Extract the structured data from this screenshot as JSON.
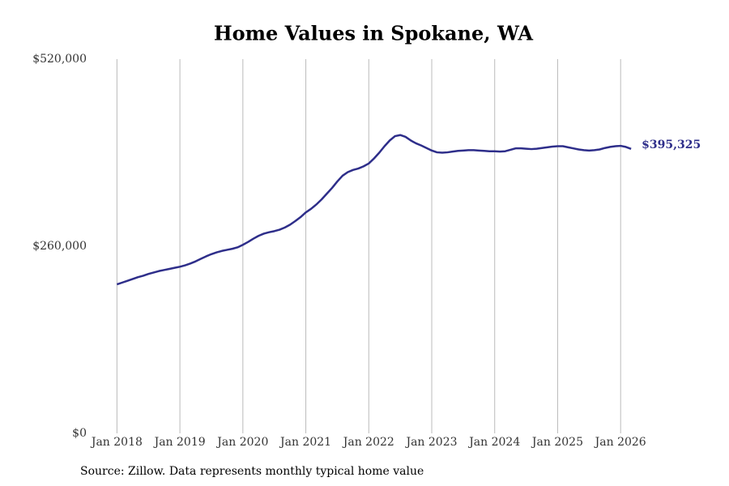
{
  "chart_data": {
    "type": "line",
    "title": "Home Values in Spokane, WA",
    "source": "Source: Zillow. Data represents monthly typical home value",
    "x": [
      "2018-01",
      "2018-02",
      "2018-03",
      "2018-04",
      "2018-05",
      "2018-06",
      "2018-07",
      "2018-08",
      "2018-09",
      "2018-10",
      "2018-11",
      "2018-12",
      "2019-01",
      "2019-02",
      "2019-03",
      "2019-04",
      "2019-05",
      "2019-06",
      "2019-07",
      "2019-08",
      "2019-09",
      "2019-10",
      "2019-11",
      "2019-12",
      "2020-01",
      "2020-02",
      "2020-03",
      "2020-04",
      "2020-05",
      "2020-06",
      "2020-07",
      "2020-08",
      "2020-09",
      "2020-10",
      "2020-11",
      "2020-12",
      "2021-01",
      "2021-02",
      "2021-03",
      "2021-04",
      "2021-05",
      "2021-06",
      "2021-07",
      "2021-08",
      "2021-09",
      "2021-10",
      "2021-11",
      "2021-12",
      "2022-01",
      "2022-02",
      "2022-03",
      "2022-04",
      "2022-05",
      "2022-06",
      "2022-07",
      "2022-08",
      "2022-09",
      "2022-10",
      "2022-11",
      "2022-12",
      "2023-01",
      "2023-02",
      "2023-03",
      "2023-04",
      "2023-05",
      "2023-06",
      "2023-07",
      "2023-08",
      "2023-09",
      "2023-10",
      "2023-11",
      "2023-12",
      "2024-01",
      "2024-02",
      "2024-03",
      "2024-04",
      "2024-05",
      "2024-06",
      "2024-07",
      "2024-08",
      "2024-09",
      "2024-10",
      "2024-11",
      "2024-12",
      "2025-01",
      "2025-02",
      "2025-03",
      "2025-04",
      "2025-05",
      "2025-06",
      "2025-07",
      "2025-08",
      "2025-09",
      "2025-10",
      "2025-11",
      "2025-12",
      "2026-01",
      "2026-02",
      "2026-03"
    ],
    "series": [
      {
        "color": "#2e2e8a",
        "values": [
          207000,
          209500,
          212000,
          214500,
          217000,
          219000,
          221500,
          223500,
          225500,
          227000,
          228500,
          230000,
          231500,
          233500,
          236000,
          239000,
          242500,
          246000,
          249000,
          251500,
          253500,
          255000,
          256500,
          258500,
          262000,
          266000,
          270500,
          274500,
          277500,
          279500,
          281000,
          283000,
          286000,
          290000,
          295000,
          300500,
          307000,
          312000,
          318000,
          325000,
          333000,
          341000,
          350000,
          358000,
          363000,
          366000,
          368000,
          371000,
          375000,
          382000,
          390000,
          399000,
          407000,
          413000,
          414500,
          412000,
          407000,
          403000,
          400000,
          396500,
          393000,
          390500,
          390000,
          390500,
          391500,
          392500,
          393000,
          393500,
          393500,
          393000,
          392500,
          392000,
          392000,
          391500,
          392000,
          394000,
          396000,
          396000,
          395500,
          395000,
          395500,
          396500,
          397500,
          398500,
          399000,
          399000,
          397500,
          396000,
          394500,
          393500,
          393000,
          393500,
          394500,
          396500,
          398000,
          399000,
          399500,
          398000,
          395325
        ]
      }
    ],
    "annotations": [
      {
        "text": "$395,325",
        "x": "2026-03",
        "value": 395325
      }
    ],
    "xlim": [
      "2017-08",
      "2026-09"
    ],
    "xticks": [
      {
        "value": "2018-01",
        "label": "Jan 2018"
      },
      {
        "value": "2019-01",
        "label": "Jan 2019"
      },
      {
        "value": "2020-01",
        "label": "Jan 2020"
      },
      {
        "value": "2021-01",
        "label": "Jan 2021"
      },
      {
        "value": "2022-01",
        "label": "Jan 2022"
      },
      {
        "value": "2023-01",
        "label": "Jan 2023"
      },
      {
        "value": "2024-01",
        "label": "Jan 2024"
      },
      {
        "value": "2025-01",
        "label": "Jan 2025"
      },
      {
        "value": "2026-01",
        "label": "Jan 2026"
      }
    ],
    "ylim": [
      0,
      520000
    ],
    "yticks": [
      {
        "value": 0,
        "label": "$0"
      },
      {
        "value": 260000,
        "label": "$260,000"
      },
      {
        "value": 520000,
        "label": "$520,000"
      }
    ],
    "grid": "x"
  }
}
